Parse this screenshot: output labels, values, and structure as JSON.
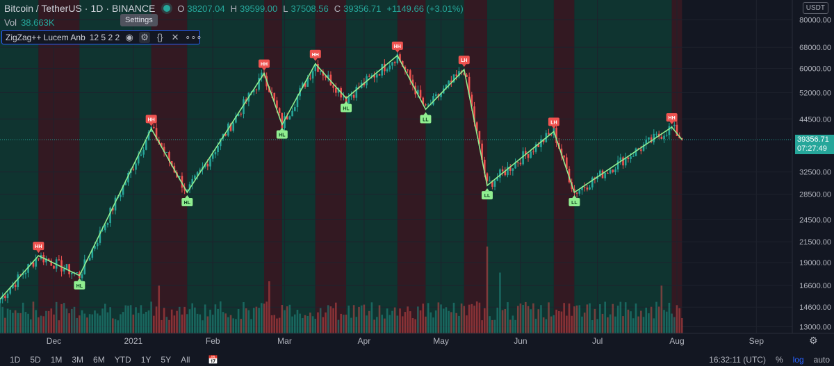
{
  "header": {
    "symbol": "Bitcoin / TetherUS",
    "interval": "1D",
    "exchange": "BINANCE",
    "open_key": "O",
    "open": "38207.04",
    "high_key": "H",
    "high": "39599.00",
    "low_key": "L",
    "low": "37508.56",
    "close_key": "C",
    "close": "39356.71",
    "change": "+1149.66 (+3.01%)",
    "status_color": "#26a69a"
  },
  "volume": {
    "label": "Vol",
    "value": "38.663K"
  },
  "tooltip": "Settings",
  "indicator": {
    "name": "ZigZag++ Lucem Anb",
    "params": "12 5 2 2",
    "icons": [
      "eye-icon",
      "gear-icon",
      "braces-icon",
      "close-icon",
      "more-icon"
    ]
  },
  "currency": "USDT",
  "last_price": {
    "value": "39356.71",
    "countdown": "07:27:49"
  },
  "bottom": {
    "ranges": [
      "1D",
      "5D",
      "1M",
      "3M",
      "6M",
      "YTD",
      "1Y",
      "5Y",
      "All"
    ],
    "time": "16:32:11 (UTC)",
    "percent": "%",
    "log": "log",
    "auto": "auto"
  },
  "chart_data": {
    "type": "candlestick",
    "scale": "log",
    "colors": {
      "up": "#26a69a",
      "down": "#ef5350",
      "zigzag": "#90ee90",
      "bg_up": "#0f3a33",
      "bg_down": "#3a1a22"
    },
    "price_axis": [
      80000,
      68000,
      60000,
      52000,
      44500,
      39356.71,
      32500,
      28500,
      24500,
      21500,
      19000,
      16600,
      14600,
      13000
    ],
    "price_axis_labels": [
      "80000.00",
      "68000.00",
      "60000.00",
      "52000.00",
      "44500.00",
      "32500.00",
      "28500.00",
      "24500.00",
      "21500.00",
      "19000.00",
      "16600.00",
      "14600.00",
      "13000.00"
    ],
    "ylim": [
      12500,
      90000
    ],
    "xlim": [
      "2020-11-10",
      "2021-09-15"
    ],
    "last_date": "2021-08-03",
    "time_axis": [
      {
        "label": "Dec",
        "date": "2020-12-01"
      },
      {
        "label": "2021",
        "date": "2021-01-01"
      },
      {
        "label": "Feb",
        "date": "2021-02-01"
      },
      {
        "label": "Mar",
        "date": "2021-03-01"
      },
      {
        "label": "Apr",
        "date": "2021-04-01"
      },
      {
        "label": "May",
        "date": "2021-05-01"
      },
      {
        "label": "Jun",
        "date": "2021-06-01"
      },
      {
        "label": "Jul",
        "date": "2021-07-01"
      },
      {
        "label": "Aug",
        "date": "2021-08-01"
      },
      {
        "label": "Sep",
        "date": "2021-09-01"
      }
    ],
    "zigzag": [
      {
        "date": "2020-11-10",
        "price": 15300,
        "label": ""
      },
      {
        "date": "2020-11-25",
        "price": 19800,
        "label": "HH"
      },
      {
        "date": "2020-12-11",
        "price": 17600,
        "label": "HL"
      },
      {
        "date": "2021-01-08",
        "price": 42000,
        "label": "HH"
      },
      {
        "date": "2021-01-22",
        "price": 28800,
        "label": "HL"
      },
      {
        "date": "2021-02-21",
        "price": 58300,
        "label": "HH"
      },
      {
        "date": "2021-02-28",
        "price": 43000,
        "label": "HL"
      },
      {
        "date": "2021-03-13",
        "price": 61700,
        "label": "HH"
      },
      {
        "date": "2021-03-25",
        "price": 50300,
        "label": "HL"
      },
      {
        "date": "2021-04-14",
        "price": 64800,
        "label": "HH"
      },
      {
        "date": "2021-04-25",
        "price": 47100,
        "label": "LL"
      },
      {
        "date": "2021-05-10",
        "price": 59600,
        "label": "LH"
      },
      {
        "date": "2021-05-19",
        "price": 30000,
        "label": "LL"
      },
      {
        "date": "2021-06-14",
        "price": 41300,
        "label": "LH"
      },
      {
        "date": "2021-06-22",
        "price": 28800,
        "label": "LL"
      },
      {
        "date": "2021-07-30",
        "price": 42400,
        "label": "HH"
      },
      {
        "date": "2021-08-03",
        "price": 39356.71,
        "label": ""
      }
    ],
    "background_bands": [
      {
        "from": "2020-11-10",
        "to": "2020-11-25",
        "trend": "up"
      },
      {
        "from": "2020-11-25",
        "to": "2020-12-11",
        "trend": "down"
      },
      {
        "from": "2020-12-11",
        "to": "2021-01-08",
        "trend": "up"
      },
      {
        "from": "2021-01-08",
        "to": "2021-01-22",
        "trend": "down"
      },
      {
        "from": "2021-01-22",
        "to": "2021-02-21",
        "trend": "up"
      },
      {
        "from": "2021-02-21",
        "to": "2021-02-28",
        "trend": "down"
      },
      {
        "from": "2021-02-28",
        "to": "2021-03-13",
        "trend": "up"
      },
      {
        "from": "2021-03-13",
        "to": "2021-03-25",
        "trend": "down"
      },
      {
        "from": "2021-03-25",
        "to": "2021-04-14",
        "trend": "up"
      },
      {
        "from": "2021-04-14",
        "to": "2021-04-25",
        "trend": "down"
      },
      {
        "from": "2021-04-25",
        "to": "2021-05-10",
        "trend": "up"
      },
      {
        "from": "2021-05-10",
        "to": "2021-05-19",
        "trend": "down"
      },
      {
        "from": "2021-05-19",
        "to": "2021-06-14",
        "trend": "up"
      },
      {
        "from": "2021-06-14",
        "to": "2021-06-22",
        "trend": "down"
      },
      {
        "from": "2021-06-22",
        "to": "2021-07-30",
        "trend": "up"
      },
      {
        "from": "2021-07-30",
        "to": "2021-08-03",
        "trend": "down"
      }
    ],
    "volume_spikes": [
      {
        "date": "2021-01-11",
        "level": 0.55
      },
      {
        "date": "2021-02-23",
        "level": 0.6
      },
      {
        "date": "2021-05-19",
        "level": 1.0
      },
      {
        "date": "2021-05-24",
        "level": 0.7
      },
      {
        "date": "2021-07-26",
        "level": 0.55
      }
    ]
  }
}
